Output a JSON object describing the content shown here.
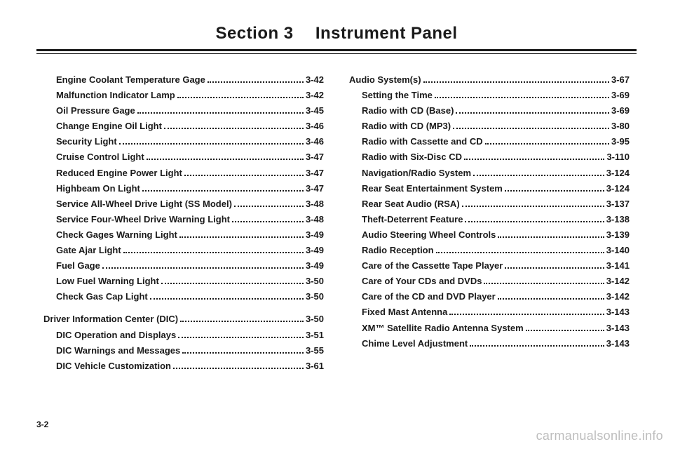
{
  "header": {
    "left": "Section 3",
    "right": "Instrument Panel"
  },
  "page_number": "3-2",
  "watermark": "carmanualsonline.info",
  "left_groups": [
    [
      {
        "label": "Engine Coolant Temperature Gage",
        "page": "3-42",
        "sub": true
      },
      {
        "label": "Malfunction Indicator Lamp",
        "page": "3-42",
        "sub": true
      },
      {
        "label": "Oil Pressure Gage",
        "page": "3-45",
        "sub": true
      },
      {
        "label": "Change Engine Oil Light",
        "page": "3-46",
        "sub": true
      },
      {
        "label": "Security Light",
        "page": "3-46",
        "sub": true
      },
      {
        "label": "Cruise Control Light",
        "page": "3-47",
        "sub": true
      },
      {
        "label": "Reduced Engine Power Light",
        "page": "3-47",
        "sub": true
      },
      {
        "label": "Highbeam On Light",
        "page": "3-47",
        "sub": true
      },
      {
        "label": "Service All-Wheel Drive Light (SS Model)",
        "page": "3-48",
        "sub": true
      },
      {
        "label": "Service Four-Wheel Drive Warning Light",
        "page": "3-48",
        "sub": true
      },
      {
        "label": "Check Gages Warning Light",
        "page": "3-49",
        "sub": true
      },
      {
        "label": "Gate Ajar Light",
        "page": "3-49",
        "sub": true
      },
      {
        "label": "Fuel Gage",
        "page": "3-49",
        "sub": true
      },
      {
        "label": "Low Fuel Warning Light",
        "page": "3-50",
        "sub": true
      },
      {
        "label": "Check Gas Cap Light",
        "page": "3-50",
        "sub": true
      }
    ],
    [
      {
        "label": "Driver Information Center (DIC)",
        "page": "3-50",
        "sub": false
      },
      {
        "label": "DIC Operation and Displays",
        "page": "3-51",
        "sub": true
      },
      {
        "label": "DIC Warnings and Messages",
        "page": "3-55",
        "sub": true
      },
      {
        "label": "DIC Vehicle Customization",
        "page": "3-61",
        "sub": true
      }
    ]
  ],
  "right_groups": [
    [
      {
        "label": "Audio System(s)",
        "page": "3-67",
        "sub": false
      },
      {
        "label": "Setting the Time",
        "page": "3-69",
        "sub": true
      },
      {
        "label": "Radio with CD (Base)",
        "page": "3-69",
        "sub": true
      },
      {
        "label": "Radio with CD (MP3)",
        "page": "3-80",
        "sub": true
      },
      {
        "label": "Radio with Cassette and CD",
        "page": "3-95",
        "sub": true
      },
      {
        "label": "Radio with Six-Disc CD",
        "page": "3-110",
        "sub": true
      },
      {
        "label": "Navigation/Radio System",
        "page": "3-124",
        "sub": true
      },
      {
        "label": "Rear Seat Entertainment System",
        "page": "3-124",
        "sub": true
      },
      {
        "label": "Rear Seat Audio (RSA)",
        "page": "3-137",
        "sub": true
      },
      {
        "label": "Theft-Deterrent Feature",
        "page": "3-138",
        "sub": true
      },
      {
        "label": "Audio Steering Wheel Controls",
        "page": "3-139",
        "sub": true
      },
      {
        "label": "Radio Reception",
        "page": "3-140",
        "sub": true
      },
      {
        "label": "Care of the Cassette Tape Player",
        "page": "3-141",
        "sub": true
      },
      {
        "label": "Care of Your CDs and DVDs",
        "page": "3-142",
        "sub": true
      },
      {
        "label": "Care of the CD and DVD Player",
        "page": "3-142",
        "sub": true
      },
      {
        "label": "Fixed Mast Antenna",
        "page": "3-143",
        "sub": true
      },
      {
        "label": "XM™ Satellite Radio Antenna System",
        "page": "3-143",
        "sub": true
      },
      {
        "label": "Chime Level Adjustment",
        "page": "3-143",
        "sub": true
      }
    ]
  ]
}
